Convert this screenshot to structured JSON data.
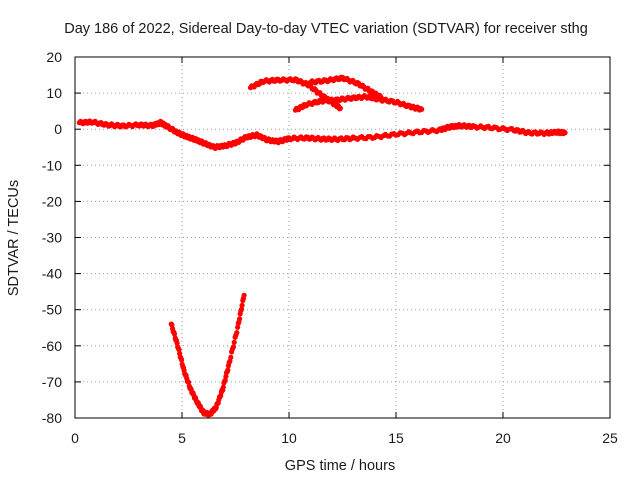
{
  "chart_data": {
    "type": "scatter",
    "title": "Day 186 of 2022, Sidereal Day-to-day VTEC variation (SDTVAR) for receiver sthg",
    "xlabel": "GPS time / hours",
    "ylabel": "SDTVAR / TECUs",
    "xlim": [
      0,
      25
    ],
    "ylim": [
      -80,
      20
    ],
    "grid": true,
    "x_ticks": [
      0,
      5,
      10,
      15,
      20,
      25
    ],
    "y_ticks": [
      20,
      10,
      0,
      -10,
      -20,
      -30,
      -40,
      -50,
      -60,
      -70,
      -80
    ],
    "x_tick_labels": [
      "0",
      "5",
      "10",
      "15",
      "20",
      "25"
    ],
    "y_tick_labels": [
      "20",
      "10",
      "0",
      "-10",
      "-20",
      "-30",
      "-40",
      "-50",
      "-60",
      "-70",
      "-80"
    ],
    "series_color": "#ff0000",
    "series": [
      {
        "name": "main-trace",
        "points": [
          [
            0.2,
            1.8
          ],
          [
            0.8,
            2.0
          ],
          [
            1.5,
            1.2
          ],
          [
            2.2,
            0.9
          ],
          [
            3.0,
            1.2
          ],
          [
            3.6,
            1.0
          ],
          [
            4.0,
            1.8
          ],
          [
            4.3,
            0.8
          ],
          [
            4.8,
            -1.0
          ],
          [
            5.2,
            -2.0
          ],
          [
            5.6,
            -2.8
          ],
          [
            6.0,
            -3.8
          ],
          [
            6.5,
            -5.0
          ],
          [
            7.0,
            -4.6
          ],
          [
            7.5,
            -3.8
          ],
          [
            8.0,
            -2.2
          ],
          [
            8.5,
            -1.6
          ],
          [
            9.0,
            -3.0
          ],
          [
            9.5,
            -3.4
          ],
          [
            10.0,
            -2.6
          ],
          [
            10.8,
            -2.4
          ],
          [
            11.5,
            -2.7
          ],
          [
            12.2,
            -2.8
          ],
          [
            13.0,
            -2.5
          ],
          [
            14.0,
            -2.2
          ],
          [
            15.0,
            -1.4
          ],
          [
            16.0,
            -0.8
          ],
          [
            17.0,
            -0.3
          ],
          [
            17.5,
            0.6
          ],
          [
            18.0,
            1.0
          ],
          [
            18.6,
            0.7
          ],
          [
            19.5,
            0.4
          ],
          [
            20.5,
            -0.2
          ],
          [
            21.2,
            -1.0
          ],
          [
            22.0,
            -1.1
          ],
          [
            22.5,
            -0.8
          ],
          [
            22.9,
            -1.0
          ]
        ]
      },
      {
        "name": "upper-arc-a",
        "points": [
          [
            8.2,
            11.5
          ],
          [
            8.8,
            13.3
          ],
          [
            9.5,
            13.6
          ],
          [
            10.3,
            13.7
          ],
          [
            10.9,
            12.3
          ],
          [
            11.5,
            9.5
          ],
          [
            12.0,
            7.5
          ],
          [
            12.4,
            5.8
          ]
        ]
      },
      {
        "name": "upper-arc-b",
        "points": [
          [
            10.3,
            5.3
          ],
          [
            10.8,
            6.8
          ],
          [
            11.5,
            7.8
          ],
          [
            12.2,
            8.1
          ],
          [
            12.9,
            8.6
          ],
          [
            13.6,
            9.0
          ],
          [
            14.2,
            8.3
          ],
          [
            15.0,
            7.5
          ],
          [
            15.7,
            6.2
          ],
          [
            16.2,
            5.5
          ]
        ]
      },
      {
        "name": "upper-arc-c",
        "points": [
          [
            11.0,
            13.0
          ],
          [
            11.8,
            13.5
          ],
          [
            12.5,
            14.2
          ],
          [
            13.2,
            12.7
          ],
          [
            13.8,
            10.6
          ],
          [
            14.3,
            8.8
          ]
        ]
      },
      {
        "name": "dip-arc",
        "points": [
          [
            4.5,
            -54.0
          ],
          [
            4.8,
            -60.0
          ],
          [
            5.1,
            -67.0
          ],
          [
            5.4,
            -72.0
          ],
          [
            5.7,
            -75.5
          ],
          [
            6.0,
            -78.5
          ],
          [
            6.3,
            -79.0
          ],
          [
            6.6,
            -77.0
          ],
          [
            6.9,
            -72.0
          ],
          [
            7.2,
            -65.0
          ],
          [
            7.6,
            -55.0
          ],
          [
            7.9,
            -46.0
          ]
        ]
      }
    ]
  }
}
